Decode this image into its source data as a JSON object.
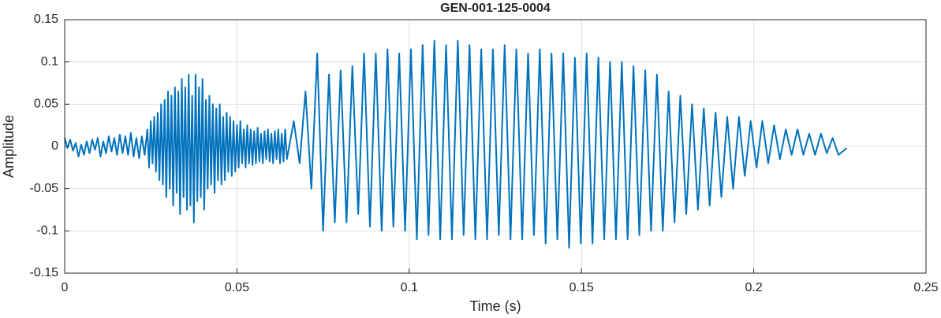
{
  "chart_data": {
    "type": "line",
    "title": "GEN-001-125-0004",
    "xlabel": "Time (s)",
    "ylabel": "Amplitude",
    "xlim": [
      0,
      0.25
    ],
    "xticks": [
      0,
      0.05,
      0.1,
      0.15,
      0.2,
      0.25
    ],
    "ylim": [
      -0.15,
      0.15
    ],
    "yticks": [
      -0.15,
      -0.1,
      -0.05,
      0,
      0.05,
      0.1,
      0.15
    ],
    "grid": true,
    "x": [
      0,
      0.0008,
      0.0016,
      0.0024,
      0.0032,
      0.004,
      0.0048,
      0.0056,
      0.0064,
      0.0072,
      0.008,
      0.0088,
      0.0096,
      0.0104,
      0.0112,
      0.012,
      0.0128,
      0.0136,
      0.0144,
      0.0152,
      0.016,
      0.0168,
      0.0176,
      0.0184,
      0.0192,
      0.02,
      0.0208,
      0.0216,
      0.0224,
      0.0232,
      0.024,
      0.0245,
      0.025,
      0.0255,
      0.026,
      0.0265,
      0.027,
      0.0275,
      0.028,
      0.0285,
      0.029,
      0.0295,
      0.03,
      0.0305,
      0.031,
      0.0315,
      0.032,
      0.0325,
      0.033,
      0.0335,
      0.034,
      0.0345,
      0.035,
      0.0355,
      0.036,
      0.0365,
      0.037,
      0.0375,
      0.038,
      0.0385,
      0.039,
      0.0395,
      0.04,
      0.0405,
      0.041,
      0.0415,
      0.042,
      0.0425,
      0.043,
      0.0435,
      0.044,
      0.0445,
      0.045,
      0.0455,
      0.046,
      0.0465,
      0.047,
      0.0475,
      0.048,
      0.0485,
      0.049,
      0.0495,
      0.05,
      0.0505,
      0.051,
      0.0515,
      0.052,
      0.0525,
      0.053,
      0.0535,
      0.054,
      0.0545,
      0.055,
      0.0555,
      0.056,
      0.0565,
      0.057,
      0.0575,
      0.058,
      0.0585,
      0.059,
      0.0595,
      0.06,
      0.0605,
      0.061,
      0.0615,
      0.062,
      0.0625,
      0.063,
      0.0635,
      0.064,
      0.0645,
      0.0665,
      0.0682,
      0.0699,
      0.0716,
      0.0733,
      0.075,
      0.0767,
      0.0784,
      0.0801,
      0.0818,
      0.0835,
      0.0852,
      0.0869,
      0.0886,
      0.0903,
      0.092,
      0.0937,
      0.0954,
      0.0971,
      0.0988,
      0.1005,
      0.1022,
      0.1039,
      0.1056,
      0.1073,
      0.109,
      0.1107,
      0.1124,
      0.1141,
      0.1158,
      0.1175,
      0.1192,
      0.1209,
      0.1226,
      0.1243,
      0.126,
      0.1277,
      0.1294,
      0.1311,
      0.1328,
      0.1345,
      0.1362,
      0.1379,
      0.1396,
      0.1413,
      0.143,
      0.1447,
      0.1464,
      0.1481,
      0.1498,
      0.1515,
      0.1532,
      0.1549,
      0.1566,
      0.1583,
      0.16,
      0.1617,
      0.1634,
      0.1651,
      0.1668,
      0.1685,
      0.1702,
      0.1719,
      0.1736,
      0.1753,
      0.177,
      0.1787,
      0.1804,
      0.1821,
      0.1838,
      0.1855,
      0.1872,
      0.1889,
      0.1906,
      0.1923,
      0.194,
      0.1957,
      0.1974,
      0.1991,
      0.2008,
      0.2025,
      0.2042,
      0.2059,
      0.2076,
      0.2093,
      0.211,
      0.2127,
      0.2144,
      0.2161,
      0.2178,
      0.2195,
      0.2212,
      0.2229,
      0.2246,
      0.227
    ],
    "series": [
      {
        "color": "#0072bd",
        "values": [
          0.01,
          -0.002,
          0.008,
          -0.005,
          0.004,
          -0.012,
          0.002,
          -0.01,
          0.006,
          -0.008,
          0.008,
          -0.004,
          0.01,
          -0.012,
          0.006,
          -0.008,
          0.012,
          -0.006,
          0.01,
          -0.01,
          0.014,
          -0.008,
          0.012,
          -0.01,
          0.016,
          -0.012,
          0.01,
          -0.014,
          0.012,
          -0.01,
          0.02,
          -0.025,
          0.03,
          -0.02,
          0.035,
          -0.03,
          0.04,
          -0.04,
          0.05,
          -0.045,
          0.055,
          -0.06,
          0.065,
          -0.05,
          0.06,
          -0.07,
          0.07,
          -0.055,
          0.065,
          -0.08,
          0.08,
          -0.06,
          0.07,
          -0.075,
          0.085,
          -0.07,
          0.06,
          -0.09,
          0.085,
          -0.065,
          0.07,
          -0.06,
          0.08,
          -0.075,
          0.055,
          -0.05,
          0.06,
          -0.045,
          0.05,
          -0.055,
          0.045,
          -0.04,
          0.05,
          -0.045,
          0.035,
          -0.04,
          0.04,
          -0.03,
          0.035,
          -0.035,
          0.03,
          -0.03,
          0.025,
          -0.025,
          0.03,
          -0.02,
          0.02,
          -0.025,
          0.025,
          -0.02,
          0.02,
          -0.022,
          0.018,
          -0.02,
          0.022,
          -0.018,
          0.015,
          -0.02,
          0.018,
          -0.015,
          0.02,
          -0.018,
          0.015,
          -0.02,
          0.018,
          -0.015,
          0.02,
          -0.02,
          0.015,
          -0.018,
          0.02,
          -0.015,
          0.03,
          -0.02,
          0.065,
          -0.05,
          0.11,
          -0.1,
          0.085,
          -0.09,
          0.09,
          -0.09,
          0.095,
          -0.08,
          0.11,
          -0.095,
          0.11,
          -0.1,
          0.115,
          -0.095,
          0.11,
          -0.1,
          0.115,
          -0.11,
          0.12,
          -0.105,
          0.125,
          -0.11,
          0.12,
          -0.11,
          0.125,
          -0.105,
          0.12,
          -0.11,
          0.115,
          -0.11,
          0.115,
          -0.105,
          0.12,
          -0.11,
          0.115,
          -0.11,
          0.11,
          -0.105,
          0.115,
          -0.115,
          0.11,
          -0.11,
          0.11,
          -0.12,
          0.105,
          -0.115,
          0.11,
          -0.115,
          0.105,
          -0.11,
          0.1,
          -0.11,
          0.1,
          -0.11,
          0.095,
          -0.105,
          0.09,
          -0.1,
          0.085,
          -0.1,
          0.065,
          -0.09,
          0.06,
          -0.08,
          0.05,
          -0.075,
          0.045,
          -0.07,
          0.04,
          -0.06,
          0.035,
          -0.05,
          0.035,
          -0.035,
          0.03,
          -0.025,
          0.03,
          -0.02,
          0.025,
          -0.015,
          0.02,
          -0.01,
          0.02,
          -0.01,
          0.015,
          -0.01,
          0.015,
          -0.008,
          0.01,
          -0.01,
          -0.002
        ]
      }
    ]
  }
}
